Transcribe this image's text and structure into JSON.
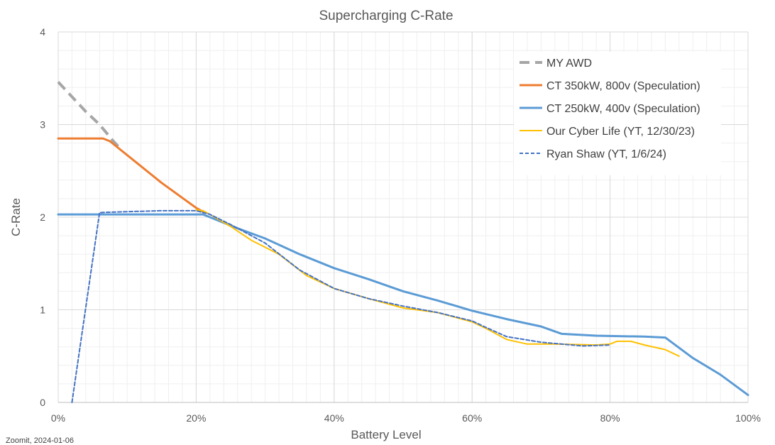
{
  "chart_data": {
    "type": "line",
    "title": "Supercharging C-Rate",
    "xlabel": "Battery Level",
    "ylabel": "C-Rate",
    "xlim": [
      0,
      100
    ],
    "ylim": [
      0,
      4
    ],
    "x_ticks": [
      0,
      20,
      40,
      60,
      80,
      100
    ],
    "x_tick_labels": [
      "0%",
      "20%",
      "40%",
      "60%",
      "80%",
      "100%"
    ],
    "y_ticks": [
      0,
      1,
      2,
      3,
      4
    ],
    "y_tick_labels": [
      "0",
      "1",
      "2",
      "3",
      "4"
    ],
    "grid": {
      "major": true,
      "minor": true,
      "x_minor_step": 2,
      "y_minor_step": 0.2
    },
    "legend": {
      "position": "top-right"
    },
    "series": [
      {
        "name": "MY AWD",
        "color": "#a6a6a6",
        "style": "dashed",
        "width": 4,
        "points": [
          [
            0,
            3.46
          ],
          [
            4,
            3.14
          ],
          [
            6,
            3.0
          ],
          [
            8,
            2.82
          ],
          [
            9,
            2.74
          ]
        ]
      },
      {
        "name": "CT 350kW, 800v (Speculation)",
        "color": "#ed7d31",
        "style": "solid",
        "width": 3,
        "points": [
          [
            0,
            2.85
          ],
          [
            6.5,
            2.85
          ],
          [
            7.5,
            2.82
          ],
          [
            10,
            2.67
          ],
          [
            15,
            2.37
          ],
          [
            20,
            2.1
          ],
          [
            21,
            2.06
          ]
        ]
      },
      {
        "name": "CT 250kW, 400v (Speculation)",
        "color": "#5b9bd5",
        "style": "solid",
        "width": 3,
        "points": [
          [
            0,
            2.03
          ],
          [
            21,
            2.03
          ],
          [
            26,
            1.88
          ],
          [
            30,
            1.77
          ],
          [
            35,
            1.6
          ],
          [
            40,
            1.45
          ],
          [
            45,
            1.33
          ],
          [
            50,
            1.2
          ],
          [
            55,
            1.1
          ],
          [
            60,
            0.99
          ],
          [
            65,
            0.9
          ],
          [
            70,
            0.82
          ],
          [
            73,
            0.74
          ],
          [
            78,
            0.72
          ],
          [
            85,
            0.71
          ],
          [
            88,
            0.7
          ],
          [
            92,
            0.48
          ],
          [
            96,
            0.3
          ],
          [
            100,
            0.08
          ]
        ]
      },
      {
        "name": "Our Cyber Life (YT, 12/30/23)",
        "color": "#ffc000",
        "style": "solid",
        "width": 2,
        "points": [
          [
            20,
            2.08
          ],
          [
            21,
            2.07
          ],
          [
            22,
            2.03
          ],
          [
            25,
            1.9
          ],
          [
            28,
            1.75
          ],
          [
            32,
            1.6
          ],
          [
            36,
            1.37
          ],
          [
            40,
            1.23
          ],
          [
            45,
            1.12
          ],
          [
            50,
            1.02
          ],
          [
            55,
            0.97
          ],
          [
            60,
            0.87
          ],
          [
            62,
            0.8
          ],
          [
            65,
            0.68
          ],
          [
            68,
            0.63
          ],
          [
            72,
            0.63
          ],
          [
            78,
            0.62
          ],
          [
            80,
            0.63
          ],
          [
            81,
            0.66
          ],
          [
            83,
            0.66
          ],
          [
            85,
            0.62
          ],
          [
            88,
            0.57
          ],
          [
            90,
            0.5
          ]
        ]
      },
      {
        "name": "Ryan Shaw (YT, 1/6/24)",
        "color": "#4472c4",
        "style": "dotted",
        "width": 2,
        "points": [
          [
            2,
            0
          ],
          [
            6,
            2.05
          ],
          [
            10,
            2.06
          ],
          [
            15,
            2.07
          ],
          [
            20,
            2.07
          ],
          [
            22,
            2.03
          ],
          [
            25,
            1.92
          ],
          [
            30,
            1.72
          ],
          [
            35,
            1.43
          ],
          [
            40,
            1.23
          ],
          [
            45,
            1.12
          ],
          [
            50,
            1.04
          ],
          [
            55,
            0.97
          ],
          [
            60,
            0.88
          ],
          [
            62,
            0.81
          ],
          [
            65,
            0.71
          ],
          [
            70,
            0.65
          ],
          [
            76,
            0.61
          ],
          [
            80,
            0.62
          ]
        ]
      }
    ],
    "footnote": "Zoomit, 2024-01-06"
  }
}
